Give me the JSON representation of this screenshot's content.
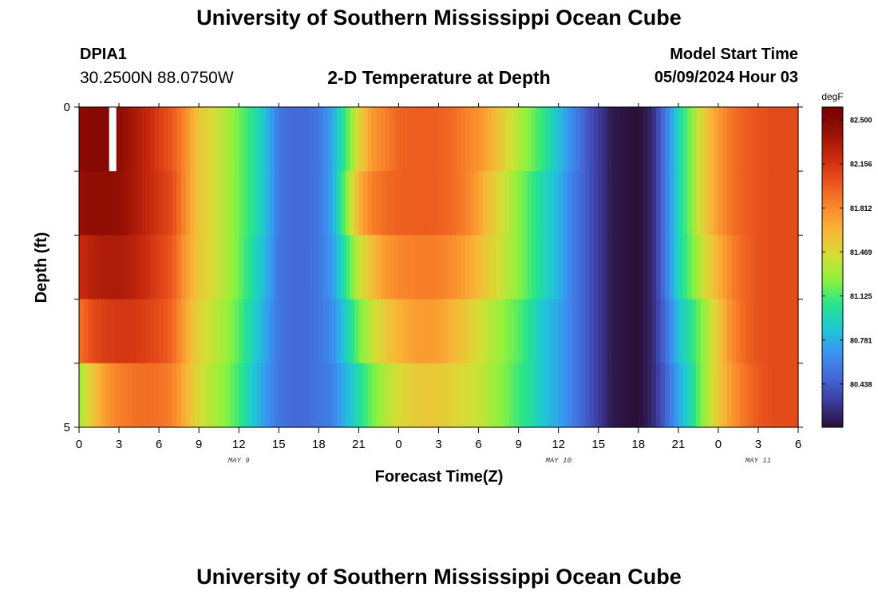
{
  "header": {
    "title": "University of Southern Mississippi Ocean Cube",
    "station_id": "DPIA1",
    "station_coords": "30.2500N  88.0750W",
    "subtitle": "2-D Temperature at Depth",
    "model_start_label": "Model Start Time",
    "model_start_value": "05/09/2024 Hour 03"
  },
  "footer": {
    "title": "University of Southern Mississippi Ocean Cube"
  },
  "chart_data": {
    "type": "heatmap",
    "title": "2-D Temperature at Depth",
    "xlabel": "Forecast Time(Z)",
    "ylabel": "Depth (ft)",
    "x_unit": "hours from May 9 00Z",
    "x_range": [
      0,
      54
    ],
    "y_range": [
      0,
      5
    ],
    "x_tick_labels": [
      "0",
      "3",
      "6",
      "9",
      "12",
      "15",
      "18",
      "21",
      "0",
      "3",
      "6",
      "9",
      "12",
      "15",
      "18",
      "21",
      "0",
      "3",
      "6"
    ],
    "y_tick_labels": [
      "0",
      "5"
    ],
    "date_labels": [
      {
        "text": "MAY 9",
        "x": 12
      },
      {
        "text": "MAY 10",
        "x": 36
      },
      {
        "text": "MAY 11",
        "x": 51
      }
    ],
    "colorbar": {
      "unit": "degF",
      "colors": [
        "#2a0f35",
        "#3b3a9a",
        "#4467d6",
        "#3a92f2",
        "#1fc7d6",
        "#27e58a",
        "#8cf23d",
        "#d6dd35",
        "#f8b637",
        "#f9852a",
        "#e9511c",
        "#c8290e",
        "#961004",
        "#760101"
      ],
      "tick_values": [
        80.438,
        80.781,
        81.125,
        81.469,
        81.812,
        82.156,
        82.5
      ],
      "tick_labels": [
        "80.438",
        "80.781",
        "81.125",
        "81.469",
        "81.812",
        "82.156",
        "82.500"
      ],
      "vmin": 80.1,
      "vmax": 82.6
    },
    "depth_layers": [
      0,
      1,
      2,
      3,
      4
    ],
    "missing": {
      "hour": 2.5,
      "layer": 0
    },
    "profiles": [
      {
        "hours": [
          0,
          1,
          2,
          3,
          4,
          5,
          6,
          7,
          8,
          9,
          10,
          11,
          12,
          13,
          14,
          15,
          16,
          17,
          18,
          19,
          20,
          21,
          22,
          23,
          24,
          25,
          26,
          27,
          28,
          29,
          30,
          31,
          32,
          33,
          34,
          35,
          36,
          37,
          38,
          39,
          40,
          41,
          42,
          43,
          44,
          45,
          46,
          47,
          48,
          49,
          50,
          51,
          52,
          53,
          54
        ],
        "temps": [
          82.48,
          82.5,
          82.5,
          82.45,
          82.35,
          82.25,
          82.12,
          82.0,
          81.8,
          81.55,
          81.45,
          81.35,
          81.2,
          81.05,
          80.85,
          80.55,
          80.5,
          80.5,
          80.55,
          80.75,
          81.1,
          81.5,
          81.75,
          81.85,
          81.95,
          81.98,
          81.98,
          81.97,
          81.93,
          81.85,
          81.78,
          81.65,
          81.5,
          81.35,
          81.2,
          81.05,
          80.85,
          80.65,
          80.45,
          80.3,
          80.15,
          80.12,
          80.1,
          80.2,
          80.55,
          80.95,
          81.25,
          81.55,
          81.75,
          81.9,
          81.98,
          82.02,
          82.05,
          82.05,
          82.05
        ]
      },
      {
        "hours": [
          0,
          1,
          2,
          3,
          4,
          5,
          6,
          7,
          8,
          9,
          10,
          11,
          12,
          13,
          14,
          15,
          16,
          17,
          18,
          19,
          20,
          21,
          22,
          23,
          24,
          25,
          26,
          27,
          28,
          29,
          30,
          31,
          32,
          33,
          34,
          35,
          36,
          37,
          38,
          39,
          40,
          41,
          42,
          43,
          44,
          45,
          46,
          47,
          48,
          49,
          50,
          51,
          52,
          53,
          54
        ],
        "temps": [
          82.4,
          82.45,
          82.45,
          82.42,
          82.35,
          82.25,
          82.15,
          82.05,
          81.8,
          81.55,
          81.45,
          81.35,
          81.2,
          81.05,
          80.85,
          80.55,
          80.5,
          80.5,
          80.55,
          80.75,
          81.2,
          81.65,
          81.85,
          81.93,
          81.96,
          81.98,
          81.98,
          81.97,
          81.93,
          81.85,
          81.72,
          81.55,
          81.4,
          81.25,
          81.1,
          80.95,
          80.8,
          80.6,
          80.45,
          80.3,
          80.15,
          80.12,
          80.1,
          80.2,
          80.55,
          80.95,
          81.25,
          81.55,
          81.75,
          81.9,
          81.98,
          82.02,
          82.05,
          82.05,
          82.05
        ]
      },
      {
        "hours": [
          0,
          1,
          2,
          3,
          4,
          5,
          6,
          7,
          8,
          9,
          10,
          11,
          12,
          13,
          14,
          15,
          16,
          17,
          18,
          19,
          20,
          21,
          22,
          23,
          24,
          25,
          26,
          27,
          28,
          29,
          30,
          31,
          32,
          33,
          34,
          35,
          36,
          37,
          38,
          39,
          40,
          41,
          42,
          43,
          44,
          45,
          46,
          47,
          48,
          49,
          50,
          51,
          52,
          53,
          54
        ],
        "temps": [
          82.2,
          82.28,
          82.32,
          82.32,
          82.28,
          82.2,
          82.1,
          82.0,
          81.75,
          81.55,
          81.45,
          81.35,
          81.2,
          81.0,
          80.8,
          80.55,
          80.5,
          80.5,
          80.55,
          80.7,
          81.05,
          81.4,
          81.6,
          81.75,
          81.82,
          81.85,
          81.86,
          81.85,
          81.8,
          81.72,
          81.62,
          81.5,
          81.38,
          81.25,
          81.1,
          80.95,
          80.8,
          80.6,
          80.45,
          80.3,
          80.15,
          80.12,
          80.1,
          80.2,
          80.55,
          80.95,
          81.2,
          81.45,
          81.65,
          81.85,
          81.95,
          82.02,
          82.05,
          82.05,
          82.05
        ]
      },
      {
        "hours": [
          0,
          1,
          2,
          3,
          4,
          5,
          6,
          7,
          8,
          9,
          10,
          11,
          12,
          13,
          14,
          15,
          16,
          17,
          18,
          19,
          20,
          21,
          22,
          23,
          24,
          25,
          26,
          27,
          28,
          29,
          30,
          31,
          32,
          33,
          34,
          35,
          36,
          37,
          38,
          39,
          40,
          41,
          42,
          43,
          44,
          45,
          46,
          47,
          48,
          49,
          50,
          51,
          52,
          53,
          54
        ],
        "temps": [
          81.9,
          82.05,
          82.12,
          82.15,
          82.15,
          82.1,
          82.05,
          81.95,
          81.7,
          81.5,
          81.4,
          81.3,
          81.15,
          80.95,
          80.75,
          80.55,
          80.5,
          80.5,
          80.55,
          80.65,
          80.9,
          81.2,
          81.4,
          81.55,
          81.65,
          81.72,
          81.75,
          81.72,
          81.65,
          81.55,
          81.45,
          81.35,
          81.25,
          81.15,
          81.0,
          80.85,
          80.75,
          80.6,
          80.45,
          80.3,
          80.15,
          80.12,
          80.1,
          80.2,
          80.5,
          80.85,
          81.05,
          81.3,
          81.55,
          81.8,
          81.95,
          82.02,
          82.05,
          82.05,
          82.05
        ]
      },
      {
        "hours": [
          0,
          1,
          2,
          3,
          4,
          5,
          6,
          7,
          8,
          9,
          10,
          11,
          12,
          13,
          14,
          15,
          16,
          17,
          18,
          19,
          20,
          21,
          22,
          23,
          24,
          25,
          26,
          27,
          28,
          29,
          30,
          31,
          32,
          33,
          34,
          35,
          36,
          37,
          38,
          39,
          40,
          41,
          42,
          43,
          44,
          45,
          46,
          47,
          48,
          49,
          50,
          51,
          52,
          53,
          54
        ],
        "temps": [
          81.3,
          81.55,
          81.75,
          81.85,
          81.9,
          81.92,
          81.9,
          81.85,
          81.65,
          81.45,
          81.35,
          81.25,
          81.1,
          80.9,
          80.7,
          80.55,
          80.5,
          80.5,
          80.55,
          80.6,
          80.8,
          81.0,
          81.2,
          81.35,
          81.45,
          81.52,
          81.55,
          81.55,
          81.5,
          81.45,
          81.4,
          81.32,
          81.22,
          81.1,
          81.0,
          80.85,
          80.75,
          80.6,
          80.45,
          80.3,
          80.15,
          80.12,
          80.1,
          80.2,
          80.45,
          80.75,
          81.0,
          81.3,
          81.55,
          81.75,
          81.9,
          82.0,
          82.05,
          82.05,
          82.05
        ]
      }
    ]
  }
}
